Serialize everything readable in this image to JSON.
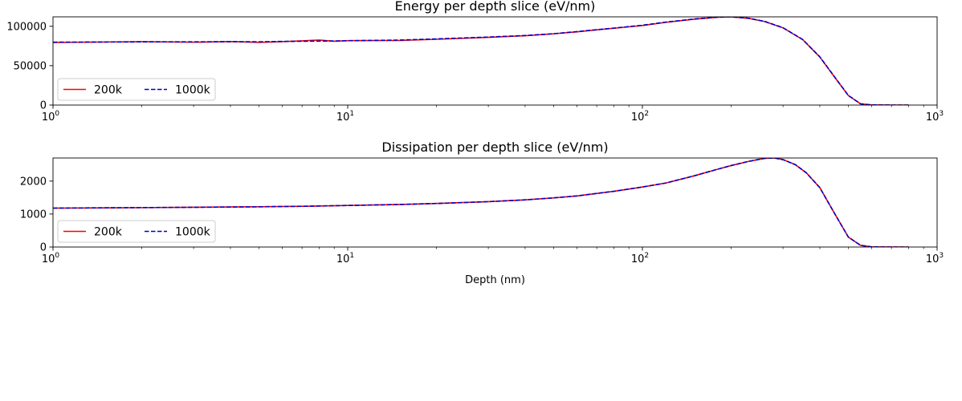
{
  "chart_data": [
    {
      "type": "line",
      "title": "Energy per depth slice (eV/nm)",
      "xlabel": "",
      "ylabel": "",
      "xscale": "log",
      "xlim": [
        1,
        1000
      ],
      "ylim": [
        0,
        112000
      ],
      "xticks": [
        {
          "base": "10",
          "exp": "0",
          "value": 1
        },
        {
          "base": "10",
          "exp": "1",
          "value": 10
        },
        {
          "base": "10",
          "exp": "2",
          "value": 100
        },
        {
          "base": "10",
          "exp": "3",
          "value": 1000
        }
      ],
      "yticks": [
        {
          "label": "0",
          "value": 0
        },
        {
          "label": "50000",
          "value": 50000
        },
        {
          "label": "100000",
          "value": 100000
        }
      ],
      "grid": false,
      "legend_position": "lower-left",
      "series": [
        {
          "name": "200k",
          "color": "#ff0000",
          "style": "solid",
          "x": [
            1,
            2,
            3,
            4,
            5,
            6,
            7,
            8,
            9,
            10,
            15,
            20,
            30,
            40,
            50,
            60,
            70,
            80,
            100,
            120,
            150,
            180,
            200,
            230,
            260,
            300,
            350,
            400,
            450,
            500,
            550,
            600,
            700,
            800
          ],
          "y": [
            79500,
            80500,
            79800,
            80600,
            79600,
            80500,
            81500,
            82500,
            81000,
            81800,
            82000,
            83500,
            86000,
            88000,
            90500,
            93000,
            95500,
            97500,
            101000,
            105000,
            109000,
            111500,
            112000,
            110000,
            106000,
            98000,
            83000,
            61000,
            35000,
            12000,
            1500,
            200,
            0,
            0
          ]
        },
        {
          "name": "1000k",
          "color": "#0000cc",
          "style": "dashed",
          "x": [
            1,
            2,
            3,
            4,
            5,
            6,
            7,
            8,
            9,
            10,
            15,
            20,
            30,
            40,
            50,
            60,
            70,
            80,
            100,
            120,
            150,
            180,
            200,
            230,
            260,
            300,
            350,
            400,
            450,
            500,
            550,
            600,
            700,
            800
          ],
          "y": [
            79800,
            80200,
            80200,
            80500,
            80300,
            80800,
            81000,
            81200,
            81400,
            81700,
            82500,
            84000,
            86300,
            88300,
            90600,
            93200,
            95700,
            97700,
            101300,
            105300,
            109300,
            111600,
            112000,
            110200,
            106200,
            98200,
            83200,
            61200,
            35200,
            12200,
            1600,
            200,
            0,
            0
          ]
        }
      ]
    },
    {
      "type": "line",
      "title": "Dissipation per depth slice (eV/nm)",
      "xlabel": "Depth (nm)",
      "ylabel": "",
      "xscale": "log",
      "xlim": [
        1,
        1000
      ],
      "ylim": [
        0,
        2700
      ],
      "xticks": [
        {
          "base": "10",
          "exp": "0",
          "value": 1
        },
        {
          "base": "10",
          "exp": "1",
          "value": 10
        },
        {
          "base": "10",
          "exp": "2",
          "value": 100
        },
        {
          "base": "10",
          "exp": "3",
          "value": 1000
        }
      ],
      "yticks": [
        {
          "label": "0",
          "value": 0
        },
        {
          "label": "1000",
          "value": 1000
        },
        {
          "label": "2000",
          "value": 2000
        }
      ],
      "grid": false,
      "legend_position": "lower-left",
      "series": [
        {
          "name": "200k",
          "color": "#ff0000",
          "style": "solid",
          "x": [
            1,
            2,
            3,
            5,
            7,
            10,
            15,
            20,
            30,
            40,
            50,
            60,
            80,
            100,
            120,
            150,
            180,
            200,
            230,
            260,
            280,
            300,
            330,
            360,
            400,
            450,
            500,
            550,
            600,
            700,
            800
          ],
          "y": [
            1180,
            1195,
            1205,
            1220,
            1235,
            1260,
            1290,
            1320,
            1375,
            1430,
            1490,
            1550,
            1690,
            1820,
            1940,
            2160,
            2360,
            2470,
            2600,
            2690,
            2700,
            2650,
            2500,
            2250,
            1800,
            1000,
            300,
            50,
            5,
            0,
            0
          ]
        },
        {
          "name": "1000k",
          "color": "#0000cc",
          "style": "dashed",
          "x": [
            1,
            2,
            3,
            5,
            7,
            10,
            15,
            20,
            30,
            40,
            50,
            60,
            80,
            100,
            120,
            150,
            180,
            200,
            230,
            260,
            280,
            300,
            330,
            360,
            400,
            450,
            500,
            550,
            600,
            700,
            800
          ],
          "y": [
            1180,
            1195,
            1205,
            1220,
            1235,
            1260,
            1290,
            1320,
            1375,
            1430,
            1490,
            1550,
            1690,
            1820,
            1940,
            2160,
            2360,
            2470,
            2600,
            2690,
            2700,
            2650,
            2500,
            2250,
            1800,
            1000,
            300,
            50,
            5,
            0,
            0
          ]
        }
      ]
    }
  ]
}
